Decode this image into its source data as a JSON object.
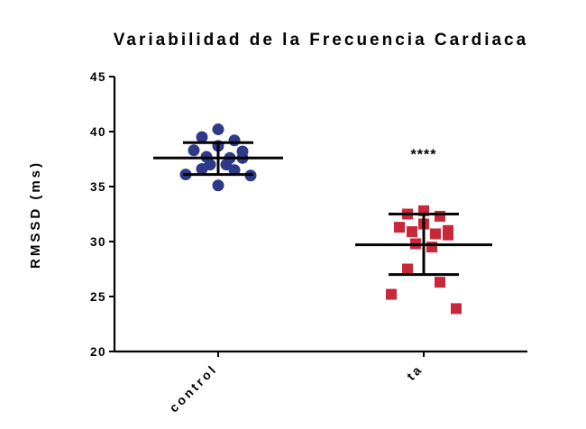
{
  "chart_data": {
    "type": "scatter",
    "title": "Variabilidad de la Frecuencia Cardiaca",
    "ylabel": "RMSSD (ms)",
    "xlabel": "",
    "ylim": [
      20,
      45
    ],
    "yticks": [
      20,
      25,
      30,
      35,
      40,
      45
    ],
    "grid": false,
    "categories": [
      "control",
      "ta"
    ],
    "groups": [
      {
        "category": "control",
        "marker": "circle",
        "color": "#2e3a87",
        "values": [
          40.2,
          39.5,
          39.2,
          38.7,
          38.3,
          38.2,
          37.7,
          37.6,
          37.6,
          37.0,
          37.0,
          36.6,
          36.5,
          36.1,
          36.0,
          35.1
        ],
        "mean": 37.6,
        "error_low": 36.1,
        "error_high": 39.0
      },
      {
        "category": "ta",
        "marker": "square",
        "color": "#c8283a",
        "values": [
          32.8,
          32.5,
          32.3,
          31.6,
          31.3,
          31.0,
          30.9,
          30.7,
          30.6,
          29.8,
          29.5,
          27.5,
          26.3,
          25.2,
          23.9
        ],
        "mean": 29.7,
        "error_low": 27.0,
        "error_high": 32.5
      }
    ],
    "annotations": [
      {
        "category": "ta",
        "text": "****",
        "y": 38.5
      }
    ]
  }
}
